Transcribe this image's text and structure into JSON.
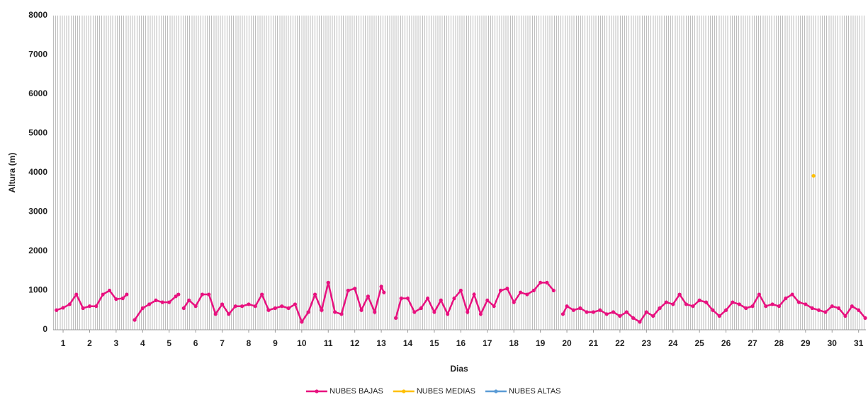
{
  "chart_data": {
    "type": "line",
    "ylabel": "Altura (m)",
    "xlabel": "Dias",
    "xlim": [
      0.625,
      31.275
    ],
    "xticks": [
      1,
      2,
      3,
      4,
      5,
      6,
      7,
      8,
      9,
      10,
      11,
      12,
      13,
      14,
      15,
      16,
      17,
      18,
      19,
      20,
      21,
      22,
      23,
      24,
      25,
      26,
      27,
      28,
      29,
      30,
      31
    ],
    "ylim": [
      0,
      8000
    ],
    "yticks": [
      0,
      1000,
      2000,
      3000,
      4000,
      5000,
      6000,
      7000,
      8000
    ],
    "legend": "bottom",
    "series": [
      {
        "name": "NUBES BAJAS",
        "color": "#e8117f",
        "x": [
          0.75,
          1,
          1.25,
          1.5,
          1.75,
          2,
          2.25,
          2.5,
          2.75,
          3,
          3.25,
          3.4,
          3.5,
          3.7,
          4,
          4.25,
          4.5,
          4.75,
          5,
          5.25,
          5.35,
          5.45,
          5.55,
          5.75,
          6,
          6.25,
          6.5,
          6.75,
          7,
          7.25,
          7.5,
          7.75,
          8,
          8.25,
          8.5,
          8.75,
          9,
          9.25,
          9.5,
          9.75,
          10,
          10.25,
          10.5,
          10.75,
          11,
          11.25,
          11.5,
          11.75,
          12,
          12.25,
          12.5,
          12.75,
          13,
          13.1,
          13.3,
          13.55,
          13.75,
          14,
          14.25,
          14.5,
          14.75,
          15,
          15.25,
          15.5,
          15.75,
          16,
          16.25,
          16.5,
          16.75,
          17,
          17.25,
          17.5,
          17.75,
          18,
          18.25,
          18.5,
          18.75,
          19,
          19.25,
          19.5,
          19.7,
          19.85,
          20,
          20.25,
          20.5,
          20.75,
          21,
          21.25,
          21.5,
          21.75,
          22,
          22.25,
          22.5,
          22.75,
          23,
          23.25,
          23.5,
          23.75,
          24,
          24.25,
          24.5,
          24.75,
          25,
          25.25,
          25.5,
          25.75,
          26,
          26.25,
          26.5,
          26.75,
          27,
          27.25,
          27.5,
          27.75,
          28,
          28.25,
          28.5,
          28.75,
          29,
          29.25,
          29.5,
          29.75,
          30,
          30.25,
          30.5,
          30.75,
          31,
          31.25
        ],
        "values": [
          500,
          560,
          650,
          900,
          550,
          600,
          600,
          900,
          1000,
          780,
          800,
          900,
          null,
          250,
          550,
          650,
          750,
          700,
          700,
          850,
          900,
          null,
          550,
          750,
          600,
          900,
          900,
          400,
          650,
          400,
          600,
          600,
          650,
          600,
          900,
          500,
          550,
          600,
          550,
          650,
          200,
          450,
          900,
          500,
          1200,
          450,
          400,
          1000,
          1050,
          500,
          850,
          450,
          1100,
          950,
          null,
          300,
          800,
          800,
          450,
          550,
          800,
          450,
          750,
          400,
          800,
          1000,
          450,
          900,
          400,
          750,
          600,
          1000,
          1050,
          700,
          950,
          900,
          1000,
          1200,
          1200,
          1000,
          null,
          400,
          600,
          500,
          550,
          450,
          450,
          500,
          400,
          450,
          350,
          450,
          300,
          200,
          450,
          350,
          550,
          700,
          650,
          900,
          650,
          600,
          750,
          700,
          500,
          350,
          500,
          700,
          650,
          550,
          600,
          900,
          600,
          650,
          600,
          800,
          900,
          700,
          650,
          550,
          500,
          450,
          600,
          550,
          350,
          600,
          500,
          300
        ]
      },
      {
        "name": "NUBES MEDIAS",
        "color": "#ffc000",
        "x": [
          29.3
        ],
        "values": [
          3920
        ]
      },
      {
        "name": "NUBES ALTAS",
        "color": "#5b9bd5",
        "x": [],
        "values": []
      }
    ]
  }
}
